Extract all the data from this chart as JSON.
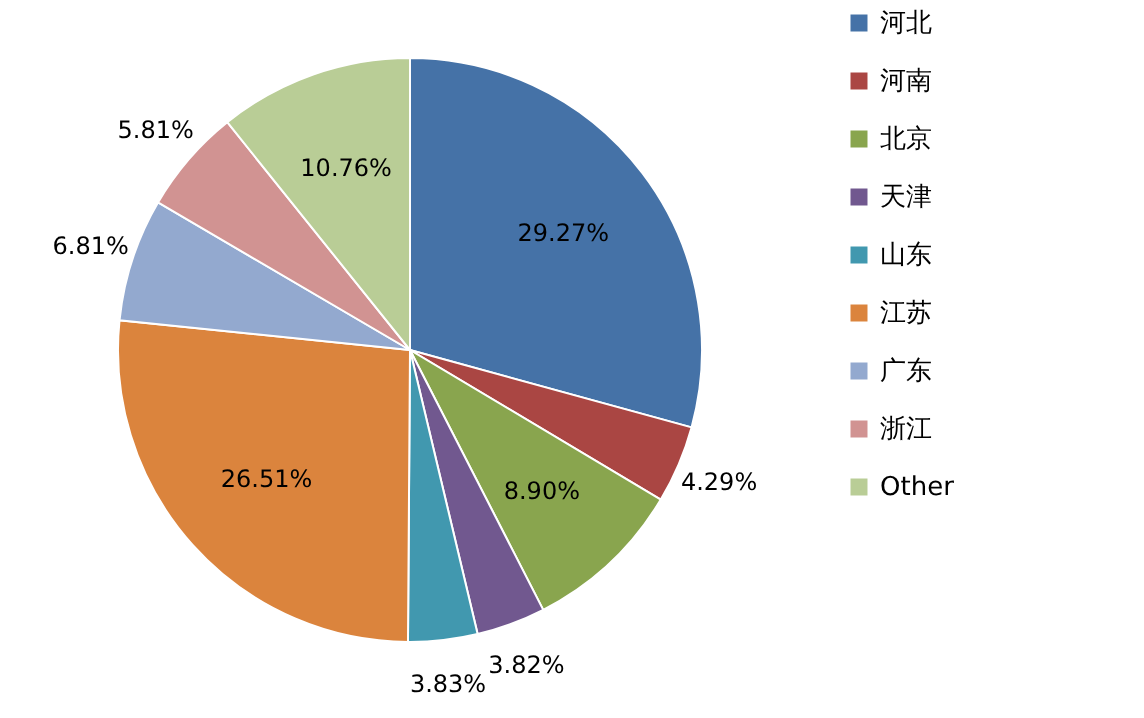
{
  "chart_data": {
    "type": "pie",
    "categories": [
      "河北",
      "河南",
      "北京",
      "天津",
      "山东",
      "江苏",
      "广东",
      "浙江",
      "Other"
    ],
    "values": [
      29.27,
      4.29,
      8.9,
      3.82,
      3.83,
      26.51,
      6.81,
      5.81,
      10.76
    ],
    "value_labels": [
      "29.27%",
      "4.29%",
      "8.90%",
      "3.82%",
      "3.83%",
      "26.51%",
      "6.81%",
      "5.81%",
      "10.76%"
    ],
    "colors": [
      "#4572a7",
      "#aa4643",
      "#89a54e",
      "#71588f",
      "#4198af",
      "#db843d",
      "#93a9cf",
      "#d19392",
      "#b9cd96"
    ],
    "legend": "right"
  }
}
